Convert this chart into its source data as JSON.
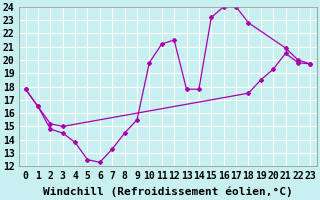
{
  "xlabel": "Windchill (Refroidissement éolien,°C)",
  "background_color": "#c8f0f0",
  "line_color": "#aa00aa",
  "xlim": [
    -0.5,
    23.5
  ],
  "ylim": [
    12,
    24
  ],
  "xticks": [
    0,
    1,
    2,
    3,
    4,
    5,
    6,
    7,
    8,
    9,
    10,
    11,
    12,
    13,
    14,
    15,
    16,
    17,
    18,
    19,
    20,
    21,
    22,
    23
  ],
  "yticks": [
    12,
    13,
    14,
    15,
    16,
    17,
    18,
    19,
    20,
    21,
    22,
    23,
    24
  ],
  "line1_x": [
    0,
    1,
    2,
    3,
    4,
    5,
    6,
    7,
    8,
    9,
    10,
    11,
    12,
    13,
    14,
    15,
    16,
    17,
    18,
    21,
    22,
    23
  ],
  "line1_y": [
    17.8,
    16.5,
    14.8,
    14.5,
    13.8,
    12.5,
    12.3,
    13.3,
    14.5,
    15.5,
    19.8,
    21.2,
    21.5,
    17.8,
    17.8,
    23.2,
    24.0,
    24.0,
    22.8,
    20.9,
    20.0,
    19.7
  ],
  "line2_x": [
    0,
    1,
    2,
    3,
    18,
    19,
    20,
    21,
    22,
    23
  ],
  "line2_y": [
    17.8,
    16.5,
    15.2,
    15.0,
    17.5,
    18.5,
    19.3,
    20.5,
    19.8,
    19.7
  ],
  "grid_color": "#ffffff",
  "font_family": "monospace",
  "tick_fontsize": 7,
  "xlabel_fontsize": 8
}
